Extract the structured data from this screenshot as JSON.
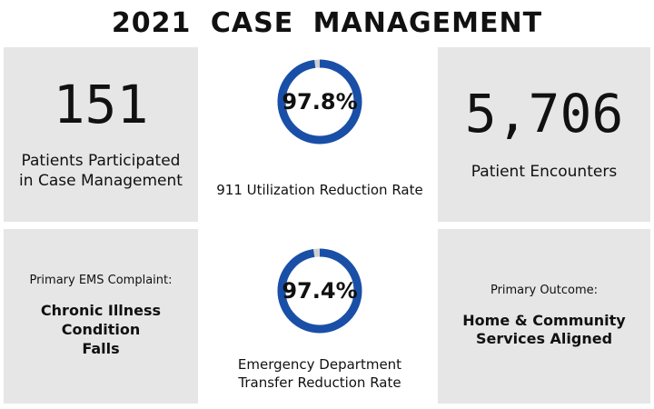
{
  "page": {
    "title": "2021   CASE  MANAGEMENT"
  },
  "colors": {
    "tile_bg": "#e6e6e6",
    "gauge_fill": "#1a4fa8",
    "gauge_track": "#d0d0d0"
  },
  "top_left": {
    "value": "151",
    "label_line1": "Patients Participated",
    "label_line2": "in Case Management"
  },
  "top_center": {
    "value_text": "97.8%",
    "fraction": 0.978,
    "caption": "911 Utilization Reduction Rate"
  },
  "top_right": {
    "value": "5,706",
    "label": "Patient Encounters"
  },
  "bottom_left": {
    "heading": "Primary EMS Complaint:",
    "line1": "Chronic Illness Condition",
    "line2": "Falls"
  },
  "bottom_center": {
    "value_text": "97.4%",
    "fraction": 0.974,
    "caption_line1": "Emergency Department",
    "caption_line2": "Transfer Reduction Rate"
  },
  "bottom_right": {
    "heading": "Primary Outcome:",
    "line1": "Home & Community",
    "line2": "Services Aligned"
  }
}
